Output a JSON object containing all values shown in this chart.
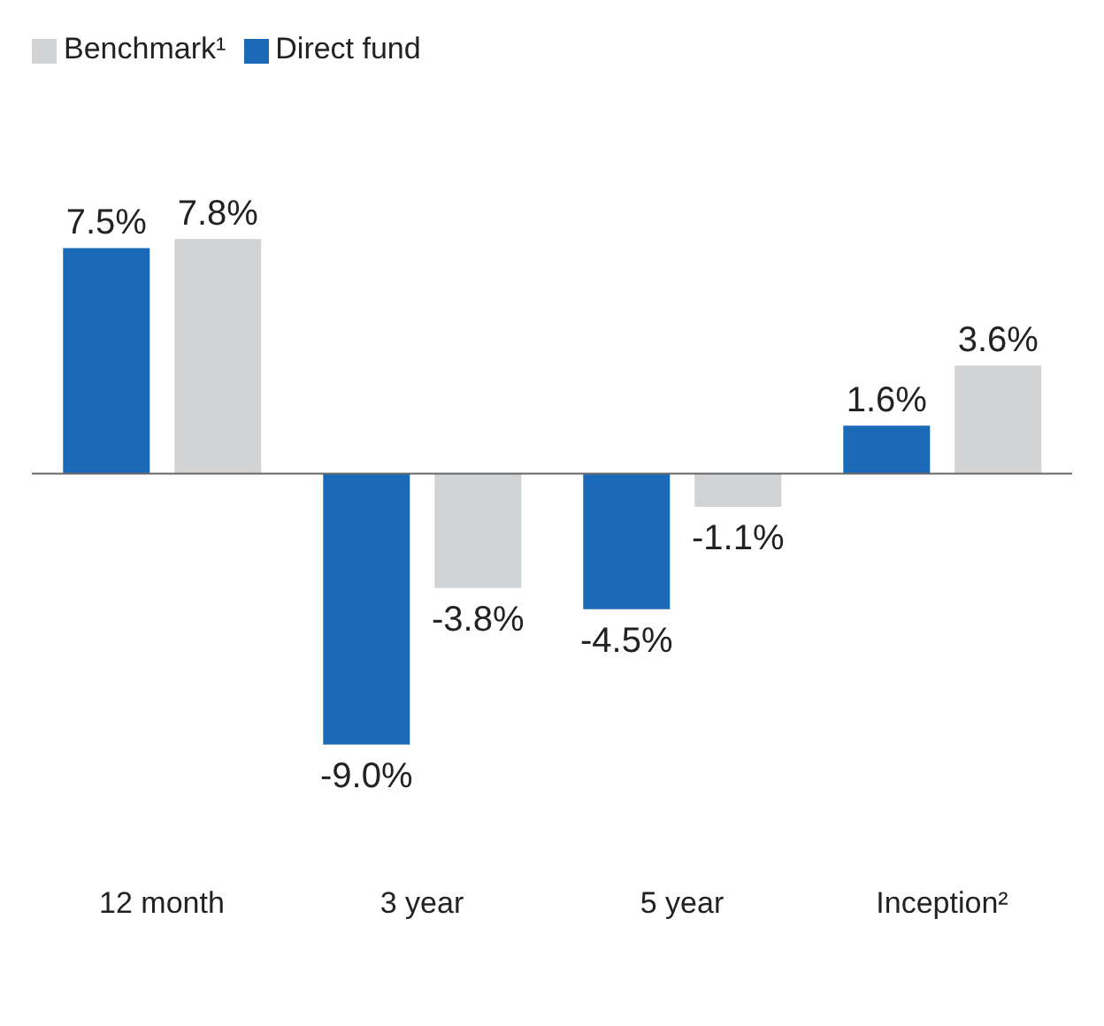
{
  "chart_data": {
    "type": "bar",
    "categories": [
      "12 month",
      "3 year",
      "5 year",
      "Inception²"
    ],
    "series": [
      {
        "name": "Direct fund",
        "color": "#1b6ab8",
        "values": [
          7.5,
          -9.0,
          -4.5,
          1.6
        ],
        "value_labels": [
          "7.5%",
          "-9.0%",
          "-4.5%",
          "1.6%"
        ]
      },
      {
        "name": "Benchmark¹",
        "color": "#d2d3d5",
        "values": [
          7.8,
          -3.8,
          -1.1,
          3.6
        ],
        "value_labels": [
          "7.8%",
          "-3.8%",
          "-1.1%",
          "3.6%"
        ]
      }
    ],
    "legend": "top left",
    "grid": false
  }
}
